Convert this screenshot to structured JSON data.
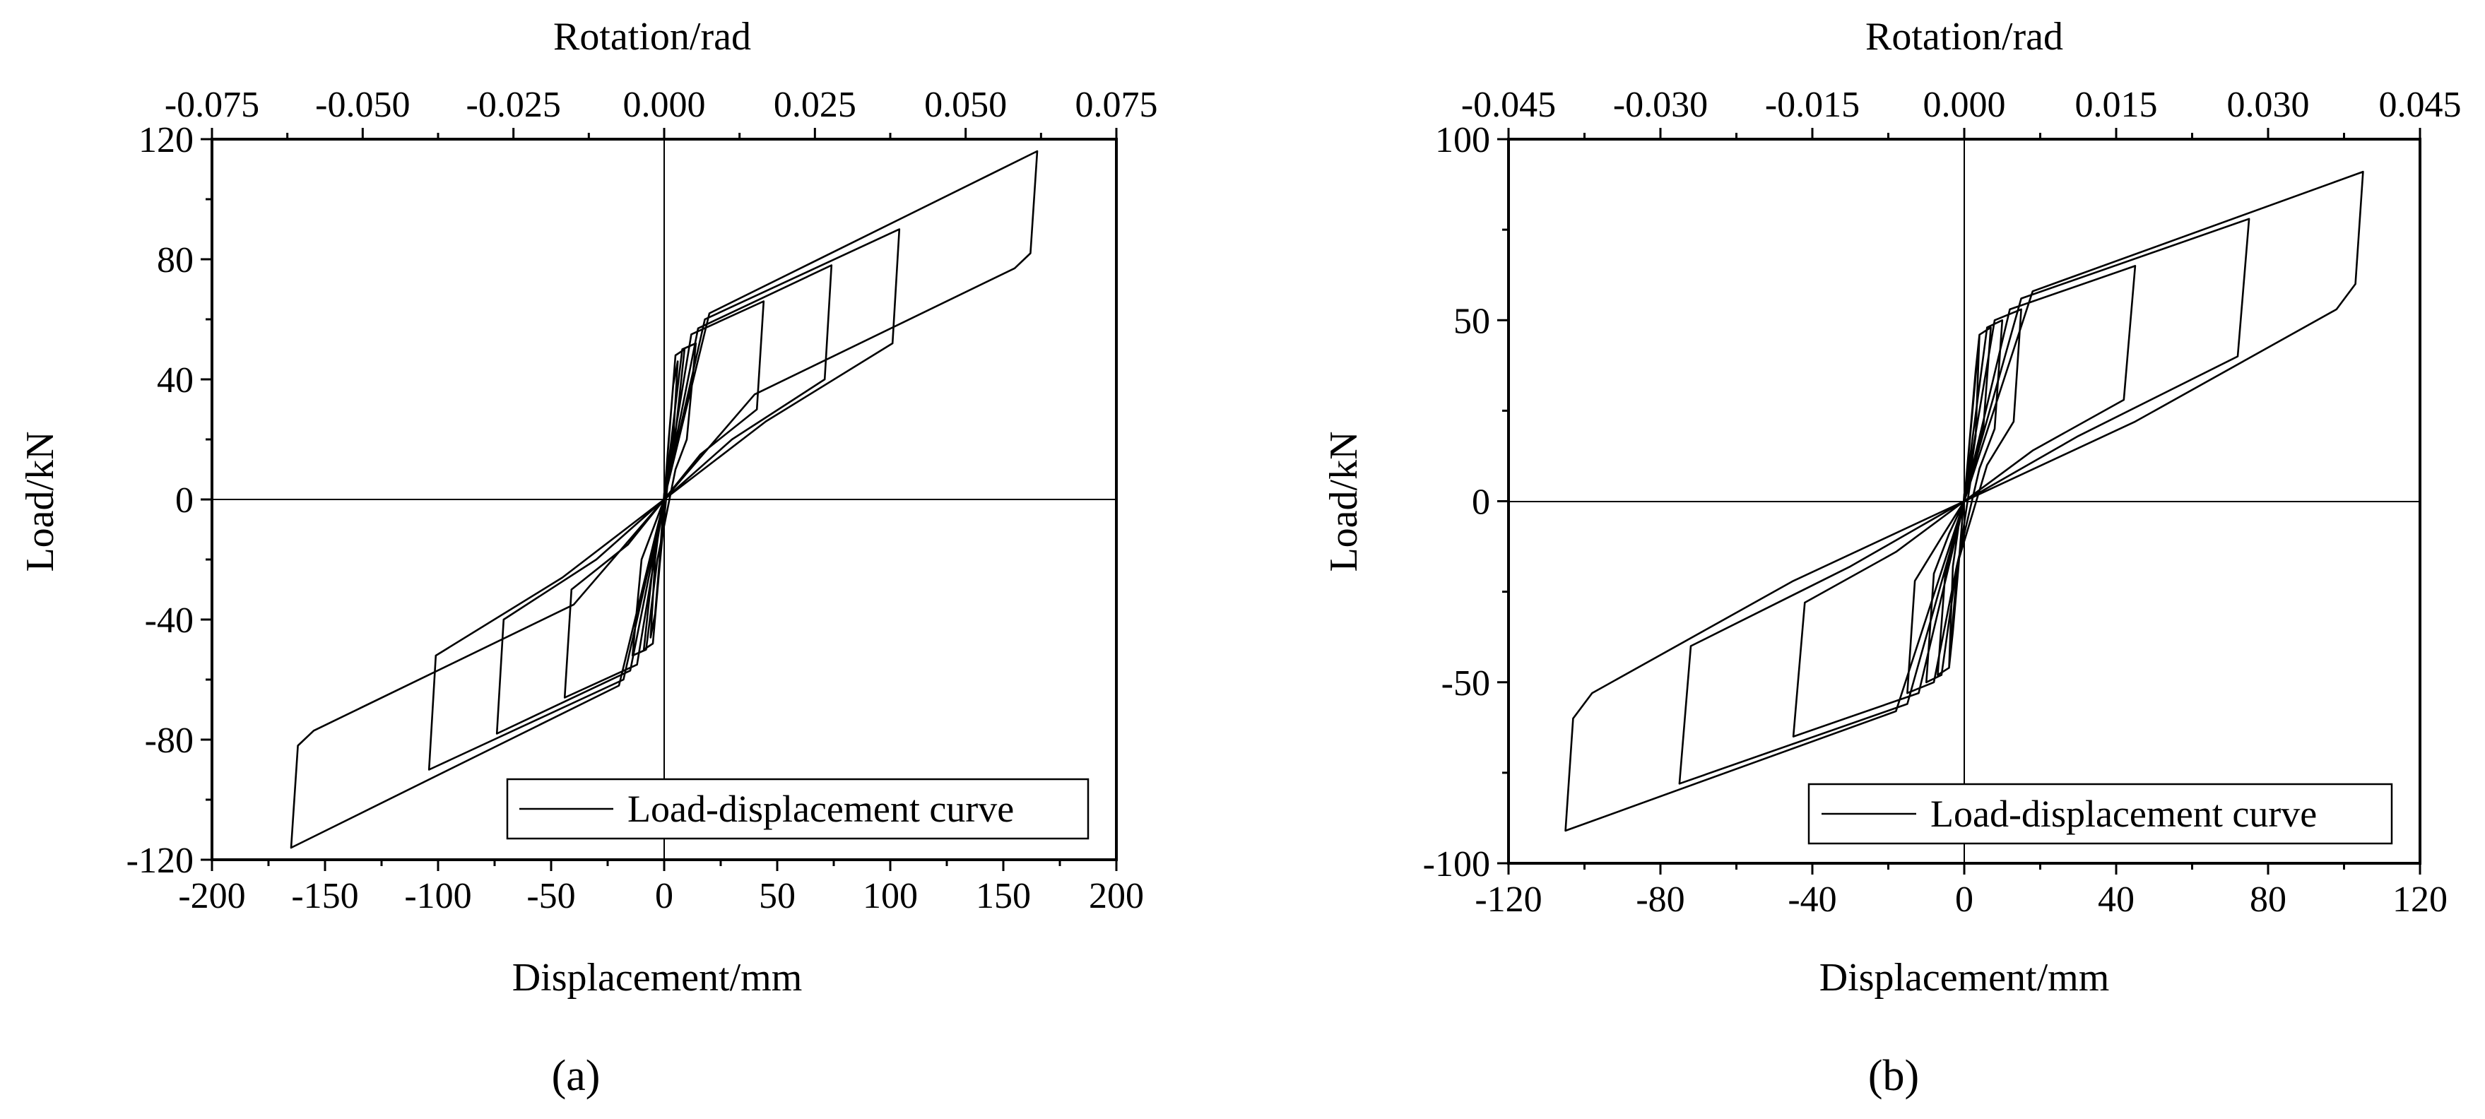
{
  "chart_data": [
    {
      "type": "line",
      "panel_label": "(a)",
      "xlabel": "Displacement/mm",
      "ylabel": "Load/kN",
      "x2label": "Rotation/rad",
      "xlim": [
        -200,
        200
      ],
      "ylim": [
        -120,
        120
      ],
      "x2lim": [
        -0.075,
        0.075
      ],
      "xticks": [
        "-200",
        "-150",
        "-100",
        "-50",
        "0",
        "50",
        "100",
        "150",
        "200"
      ],
      "yticks": [
        "-120",
        "-80",
        "-40",
        "0",
        "40",
        "80",
        "120"
      ],
      "x2ticks": [
        "-0.075",
        "-0.050",
        "-0.025",
        "0.000",
        "0.025",
        "0.050",
        "0.075"
      ],
      "grid": false,
      "legend": {
        "position": "bottom-right",
        "entries": [
          "Load-displacement curve"
        ]
      },
      "series": [
        {
          "name": "Load-displacement curve",
          "x": [
            0,
            2,
            4,
            6,
            4,
            2,
            0,
            -2,
            -4,
            -6,
            -4,
            -2,
            0,
            5,
            9,
            5,
            2,
            -2,
            -5,
            -9,
            -5,
            -2,
            0,
            8,
            14,
            10,
            5,
            -3,
            -8,
            -14,
            -10,
            -5,
            0,
            12,
            44,
            41,
            16,
            0,
            -12,
            -44,
            -41,
            -16,
            0,
            15,
            74,
            71,
            30,
            0,
            -15,
            -74,
            -71,
            -30,
            0,
            18,
            104,
            101,
            45,
            0,
            -18,
            -104,
            -101,
            -45,
            0,
            20,
            165,
            162,
            155,
            40,
            0,
            -20,
            -165,
            -162,
            -155,
            -40,
            0
          ],
          "y": [
            0,
            20,
            38,
            46,
            20,
            8,
            2,
            -20,
            -38,
            -46,
            -20,
            -8,
            0,
            48,
            50,
            22,
            9,
            -22,
            -48,
            -50,
            -22,
            -9,
            0,
            50,
            52,
            20,
            10,
            -20,
            -50,
            -52,
            -20,
            -10,
            0,
            55,
            66,
            30,
            15,
            0,
            -55,
            -66,
            -30,
            -15,
            0,
            57,
            78,
            40,
            20,
            0,
            -57,
            -78,
            -40,
            -20,
            0,
            60,
            90,
            52,
            26,
            0,
            -60,
            -90,
            -52,
            -26,
            0,
            62,
            116,
            82,
            77,
            35,
            0,
            -62,
            -116,
            -82,
            -77,
            -35,
            0
          ]
        }
      ]
    },
    {
      "type": "line",
      "panel_label": "(b)",
      "xlabel": "Displacement/mm",
      "ylabel": "Load/kN",
      "x2label": "Rotation/rad",
      "xlim": [
        -120,
        120
      ],
      "ylim": [
        -100,
        100
      ],
      "x2lim": [
        -0.045,
        0.045
      ],
      "xticks": [
        "-120",
        "-80",
        "-40",
        "0",
        "40",
        "80",
        "120"
      ],
      "yticks": [
        "-100",
        "-50",
        "0",
        "50",
        "100"
      ],
      "x2ticks": [
        "-0.045",
        "-0.030",
        "-0.015",
        "0.000",
        "0.015",
        "0.030",
        "0.045"
      ],
      "grid": false,
      "legend": {
        "position": "bottom-right",
        "entries": [
          "Load-displacement curve"
        ]
      },
      "series": [
        {
          "name": "Load-displacement curve",
          "x": [
            0,
            1.5,
            3,
            4,
            3,
            1.5,
            0,
            -1.5,
            -3,
            -4,
            -3,
            -1.5,
            0,
            4,
            7,
            5,
            2,
            -2,
            -4,
            -7,
            -5,
            -2,
            0,
            6,
            10,
            8,
            4,
            -2,
            -6,
            -10,
            -8,
            -4,
            0,
            8,
            15,
            13,
            6,
            -2,
            -8,
            -15,
            -13,
            -6,
            0,
            12,
            45,
            42,
            18,
            0,
            -12,
            -45,
            -42,
            -18,
            0,
            15,
            75,
            72,
            30,
            0,
            -15,
            -75,
            -72,
            -30,
            0,
            18,
            105,
            103,
            98,
            45,
            0,
            -18,
            -105,
            -103,
            -98,
            -45,
            0
          ],
          "y": [
            0,
            18,
            36,
            46,
            18,
            7,
            2,
            -18,
            -36,
            -46,
            -18,
            -7,
            0,
            46,
            48,
            20,
            8,
            -20,
            -46,
            -48,
            -20,
            -8,
            0,
            48,
            50,
            20,
            9,
            -18,
            -48,
            -50,
            -20,
            -9,
            0,
            50,
            53,
            22,
            10,
            -18,
            -50,
            -53,
            -22,
            -10,
            0,
            53,
            65,
            28,
            14,
            0,
            -53,
            -65,
            -28,
            -14,
            0,
            56,
            78,
            40,
            18,
            0,
            -56,
            -78,
            -40,
            -18,
            0,
            58,
            91,
            60,
            53,
            22,
            0,
            -58,
            -91,
            -60,
            -53,
            -22,
            0
          ]
        }
      ]
    }
  ]
}
